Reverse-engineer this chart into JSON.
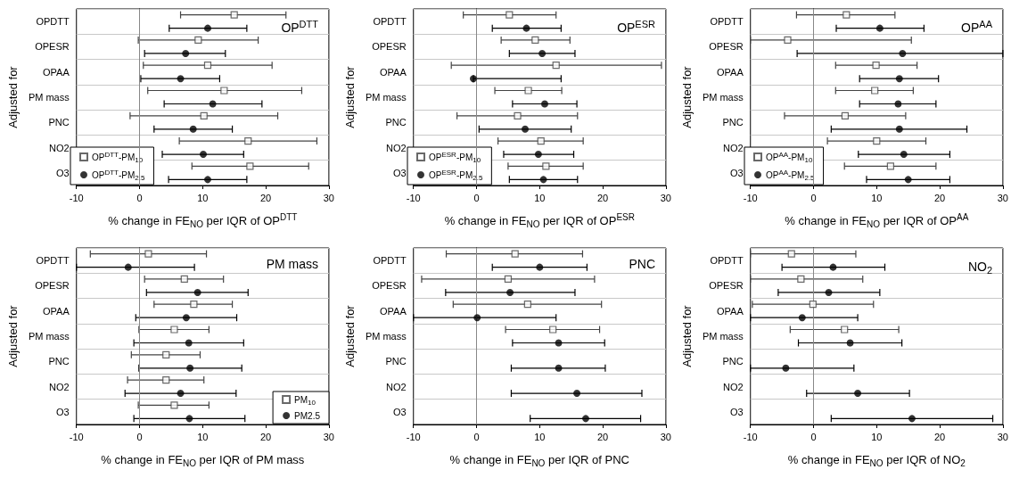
{
  "chart_data": [
    {
      "type": "scatter",
      "orientation": "horizontal",
      "title": "OP$^{DTT}$",
      "xlabel": "% change in FE$_{NO}$ per IQR of OP$^{DTT}$",
      "ylabel": "Adjusted for",
      "categories": [
        "OPDTT",
        "OPESR",
        "OPAA",
        "PM mass",
        "PNC",
        "NO2",
        "O3"
      ],
      "xlim": [
        -10,
        30
      ],
      "xticks": [
        -10,
        0,
        10,
        20,
        30
      ],
      "grid": "y",
      "legend": "bottom left",
      "ref_lines": [
        {
          "axis": "x",
          "value": 0
        }
      ],
      "series": [
        {
          "name": "OP$^{DTT}$-PM$_{10}$",
          "color": "#444444",
          "marker": "square",
          "values": [
            15,
            9.3,
            10.8,
            13.4,
            10.2,
            17.2,
            17.5
          ],
          "errors": [
            [
              6.5,
              23.2
            ],
            [
              -0.2,
              18.8
            ],
            [
              0.6,
              21
            ],
            [
              1.3,
              25.7
            ],
            [
              -1.5,
              21.9
            ],
            [
              6.3,
              28.1
            ],
            [
              8.3,
              26.8
            ]
          ]
        },
        {
          "name": "OP$^{DTT}$-PM$_{2.5}$",
          "color": "#000000",
          "marker": "circle",
          "values": [
            10.8,
            7.3,
            6.5,
            11.6,
            8.5,
            10.1,
            10.8
          ],
          "errors": [
            [
              4.7,
              17
            ],
            [
              0.8,
              13.6
            ],
            [
              0.2,
              12.7
            ],
            [
              3.9,
              19.4
            ],
            [
              2.3,
              14.7
            ],
            [
              3.6,
              16.5
            ],
            [
              4.6,
              17
            ]
          ]
        }
      ]
    },
    {
      "type": "scatter",
      "orientation": "horizontal",
      "title": "OP$^{ESR}$",
      "xlabel": "% change in FE$_{NO}$ per IQR of OP$^{ESR}$",
      "ylabel": "Adjusted for",
      "categories": [
        "OPDTT",
        "OPESR",
        "OPAA",
        "PM mass",
        "PNC",
        "NO2",
        "O3"
      ],
      "xlim": [
        -10,
        30
      ],
      "xticks": [
        -10,
        0,
        10,
        20,
        30
      ],
      "grid": "y",
      "legend": "bottom left",
      "ref_lines": [
        {
          "axis": "x",
          "value": 0
        }
      ],
      "series": [
        {
          "name": "OP$^{ESR}$-PM$_{10}$",
          "color": "#444444",
          "marker": "square",
          "values": [
            5.2,
            9.3,
            12.6,
            8.2,
            6.5,
            10.2,
            11
          ],
          "errors": [
            [
              -2.1,
              12.6
            ],
            [
              3.9,
              14.8
            ],
            [
              -4,
              29.3
            ],
            [
              2.9,
              13.5
            ],
            [
              -3.1,
              16
            ],
            [
              3.4,
              16.9
            ],
            [
              5,
              16.9
            ]
          ]
        },
        {
          "name": "OP$^{ESR}$-PM$_{2.5}$",
          "color": "#000000",
          "marker": "circle",
          "values": [
            7.9,
            10.4,
            -0.5,
            10.8,
            7.7,
            9.8,
            10.6
          ],
          "errors": [
            [
              2.5,
              13.4
            ],
            [
              5.2,
              15.6
            ],
            [
              -0.5,
              13.4
            ],
            [
              5.7,
              15.9
            ],
            [
              0.4,
              15
            ],
            [
              4.3,
              15.4
            ],
            [
              5.2,
              16
            ]
          ]
        }
      ]
    },
    {
      "type": "scatter",
      "orientation": "horizontal",
      "title": "OP$^{AA}$",
      "xlabel": "% change in FE$_{NO}$ per IQR of OP$^{AA}$",
      "ylabel": "Adjusted for",
      "categories": [
        "OPDTT",
        "OPESR",
        "OPAA",
        "PM mass",
        "PNC",
        "NO2",
        "O3"
      ],
      "xlim": [
        -10,
        30
      ],
      "xticks": [
        -10,
        0,
        10,
        20,
        30
      ],
      "grid": "y",
      "legend": "bottom left",
      "ref_lines": [
        {
          "axis": "x",
          "value": 0
        }
      ],
      "series": [
        {
          "name": "OP$^{AA}$-PM$_{10}$",
          "color": "#444444",
          "marker": "square",
          "values": [
            5.2,
            -4.1,
            9.9,
            9.7,
            5,
            10,
            12.2
          ],
          "errors": [
            [
              -2.7,
              12.9
            ],
            [
              -10,
              15.5
            ],
            [
              3.5,
              16.4
            ],
            [
              3.5,
              15.8
            ],
            [
              -4.6,
              14.6
            ],
            [
              2.2,
              17.8
            ],
            [
              4.9,
              19.4
            ]
          ]
        },
        {
          "name": "OP$^{AA}$-PM$_{2.5}$",
          "color": "#000000",
          "marker": "circle",
          "values": [
            10.5,
            14.1,
            13.6,
            13.4,
            13.6,
            14.3,
            15
          ],
          "errors": [
            [
              3.6,
              17.5
            ],
            [
              -2.6,
              30
            ],
            [
              7.3,
              19.8
            ],
            [
              7.3,
              19.4
            ],
            [
              2.8,
              24.3
            ],
            [
              7.1,
              21.6
            ],
            [
              8.4,
              21.6
            ]
          ]
        }
      ]
    },
    {
      "type": "scatter",
      "orientation": "horizontal",
      "title": "PM mass",
      "xlabel": "% change in FE$_{NO}$ per IQR of PM mass",
      "ylabel": "Adjusted for",
      "categories": [
        "OPDTT",
        "OPESR",
        "OPAA",
        "PM mass",
        "PNC",
        "NO2",
        "O3"
      ],
      "xlim": [
        -10,
        30
      ],
      "xticks": [
        -10,
        0,
        10,
        20,
        30
      ],
      "grid": "y",
      "legend": "bottom right",
      "ref_lines": [
        {
          "axis": "x",
          "value": 0
        }
      ],
      "series": [
        {
          "name": "PM$_{10}$",
          "color": "#444444",
          "marker": "square",
          "values": [
            1.4,
            7.1,
            8.6,
            5.5,
            4.2,
            4.2,
            5.5
          ],
          "errors": [
            [
              -7.8,
              10.6
            ],
            [
              0.8,
              13.3
            ],
            [
              2.3,
              14.7
            ],
            [
              -0.1,
              11
            ],
            [
              -1.3,
              9.6
            ],
            [
              -1.9,
              10.2
            ],
            [
              -0.2,
              11
            ]
          ]
        },
        {
          "name": "PM2.5",
          "color": "#000000",
          "marker": "circle",
          "values": [
            -1.8,
            9.2,
            7.4,
            7.8,
            8,
            6.5,
            7.9
          ],
          "errors": [
            [
              -10,
              8.7
            ],
            [
              1.1,
              17.2
            ],
            [
              -0.6,
              15.4
            ],
            [
              -0.9,
              16.5
            ],
            [
              -0.1,
              16.2
            ],
            [
              -2.3,
              15.3
            ],
            [
              -0.9,
              16.7
            ]
          ]
        }
      ]
    },
    {
      "type": "scatter",
      "orientation": "horizontal",
      "title": "PNC",
      "xlabel": "% change in FE$_{NO}$ per IQR of PNC",
      "ylabel": "Adjusted for",
      "categories": [
        "OPDTT",
        "OPESR",
        "OPAA",
        "PM mass",
        "PNC",
        "NO2",
        "O3"
      ],
      "xlim": [
        -10,
        30
      ],
      "xticks": [
        -10,
        0,
        10,
        20,
        30
      ],
      "grid": "y",
      "ref_lines": [
        {
          "axis": "x",
          "value": 0
        }
      ],
      "series": [
        {
          "color": "#444444",
          "marker": "square",
          "values": [
            6.1,
            5,
            8.1,
            12.1,
            null,
            null,
            null
          ],
          "errors": [
            [
              -4.8,
              16.8
            ],
            [
              -8.7,
              18.7
            ],
            [
              -3.7,
              19.8
            ],
            [
              4.6,
              19.5
            ],
            null,
            null,
            null
          ]
        },
        {
          "color": "#000000",
          "marker": "circle",
          "values": [
            10,
            5.3,
            0.1,
            13,
            13,
            15.9,
            17.3
          ],
          "errors": [
            [
              2.5,
              17.5
            ],
            [
              -4.9,
              15.6
            ],
            [
              -10,
              12.6
            ],
            [
              5.7,
              20.3
            ],
            [
              5.5,
              20.4
            ],
            [
              5.5,
              26.2
            ],
            [
              8.5,
              26
            ]
          ]
        }
      ]
    },
    {
      "type": "scatter",
      "orientation": "horizontal",
      "title": "NO$_{2}$",
      "xlabel": "% change in FE$_{NO}$ per IQR of NO$_{2}$",
      "ylabel": "Adjusted for",
      "categories": [
        "OPDTT",
        "OPESR",
        "OPAA",
        "PM mass",
        "PNC",
        "NO2",
        "O3"
      ],
      "xlim": [
        -10,
        30
      ],
      "xticks": [
        -10,
        0,
        10,
        20,
        30
      ],
      "grid": "y",
      "ref_lines": [
        {
          "axis": "x",
          "value": 0
        }
      ],
      "series": [
        {
          "color": "#444444",
          "marker": "square",
          "values": [
            -3.5,
            -2,
            -0.1,
            4.9,
            null,
            null,
            null
          ],
          "errors": [
            [
              -10,
              6.7
            ],
            [
              -10,
              7.8
            ],
            [
              -9.7,
              9.5
            ],
            [
              -3.7,
              13.5
            ],
            null,
            null,
            null
          ]
        },
        {
          "color": "#000000",
          "marker": "circle",
          "values": [
            3.1,
            2.4,
            -1.8,
            5.8,
            -4.4,
            7,
            15.6
          ],
          "errors": [
            [
              -5,
              11.3
            ],
            [
              -5.6,
              10.5
            ],
            [
              -10,
              7
            ],
            [
              -2.4,
              14
            ],
            [
              -10,
              6.4
            ],
            [
              -1.1,
              15.2
            ],
            [
              2.8,
              28.4
            ]
          ]
        }
      ]
    }
  ]
}
